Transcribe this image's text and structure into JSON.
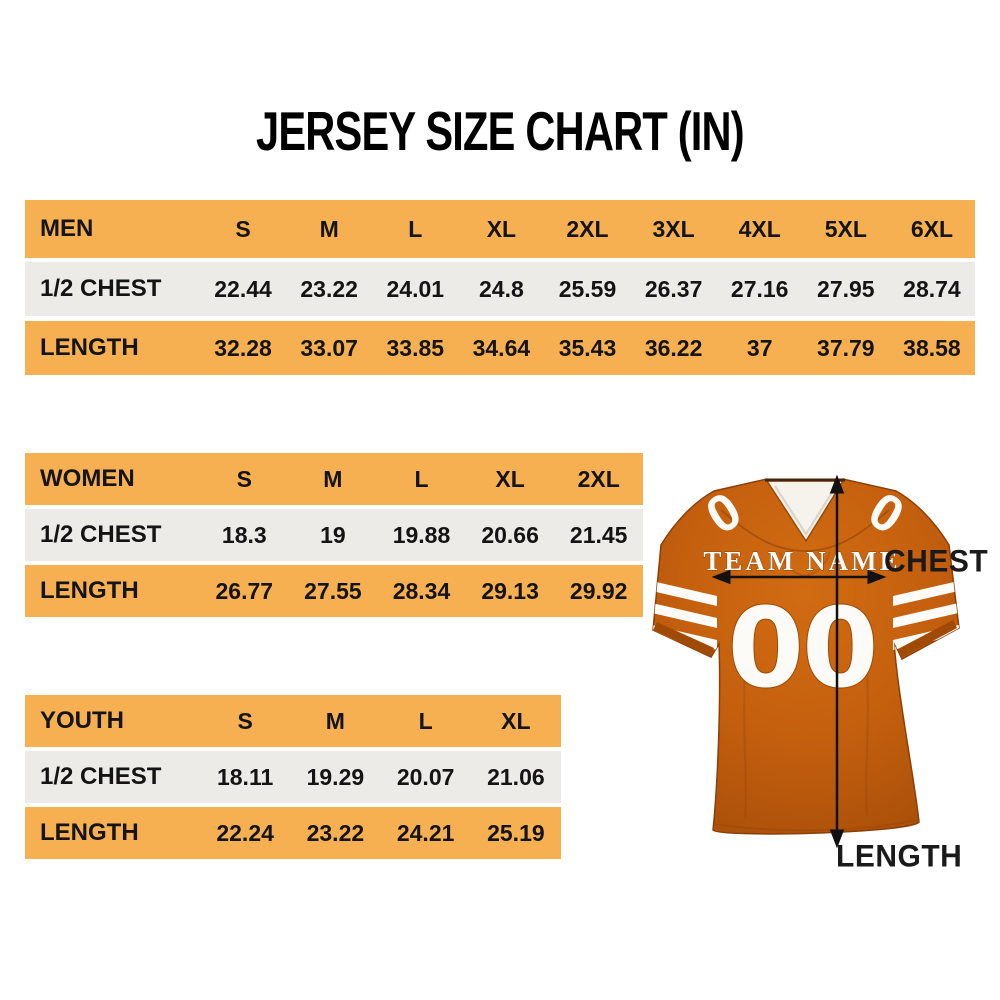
{
  "title": "JERSEY SIZE CHART (IN)",
  "tables": [
    {
      "name": "MEN",
      "sizes": [
        "S",
        "M",
        "L",
        "XL",
        "2XL",
        "3XL",
        "4XL",
        "5XL",
        "6XL"
      ],
      "rows": [
        {
          "label": "1/2 CHEST",
          "values": [
            "22.44",
            "23.22",
            "24.01",
            "24.8",
            "25.59",
            "26.37",
            "27.16",
            "27.95",
            "28.74"
          ]
        },
        {
          "label": "LENGTH",
          "values": [
            "32.28",
            "33.07",
            "33.85",
            "34.64",
            "35.43",
            "36.22",
            "37",
            "37.79",
            "38.58"
          ]
        }
      ]
    },
    {
      "name": "WOMEN",
      "sizes": [
        "S",
        "M",
        "L",
        "XL",
        "2XL"
      ],
      "rows": [
        {
          "label": "1/2 CHEST",
          "values": [
            "18.3",
            "19",
            "19.88",
            "20.66",
            "21.45"
          ]
        },
        {
          "label": "LENGTH",
          "values": [
            "26.77",
            "27.55",
            "28.34",
            "29.13",
            "29.92"
          ]
        }
      ]
    },
    {
      "name": "YOUTH",
      "sizes": [
        "S",
        "M",
        "L",
        "XL"
      ],
      "rows": [
        {
          "label": "1/2 CHEST",
          "values": [
            "18.11",
            "19.29",
            "20.07",
            "21.06"
          ]
        },
        {
          "label": "LENGTH",
          "values": [
            "22.24",
            "23.22",
            "24.21",
            "25.19"
          ]
        }
      ]
    }
  ],
  "jersey": {
    "team_name": "TEAM NAME",
    "number": "00",
    "shoulder_number": "0",
    "chest_label": "CHEST",
    "length_label": "LENGTH"
  },
  "colors": {
    "table_header_orange": "#F6B052",
    "table_row_gray": "#ECEBE8",
    "jersey_orange": "#C6600F",
    "jersey_dark_orange": "#A84E07",
    "text_black": "#141414",
    "white": "#FFFFFF"
  },
  "chart_data": [
    {
      "type": "table",
      "title": "MEN",
      "columns": [
        "",
        "S",
        "M",
        "L",
        "XL",
        "2XL",
        "3XL",
        "4XL",
        "5XL",
        "6XL"
      ],
      "rows": [
        [
          "1/2 CHEST",
          22.44,
          23.22,
          24.01,
          24.8,
          25.59,
          26.37,
          27.16,
          27.95,
          28.74
        ],
        [
          "LENGTH",
          32.28,
          33.07,
          33.85,
          34.64,
          35.43,
          36.22,
          37,
          37.79,
          38.58
        ]
      ],
      "units": "inches"
    },
    {
      "type": "table",
      "title": "WOMEN",
      "columns": [
        "",
        "S",
        "M",
        "L",
        "XL",
        "2XL"
      ],
      "rows": [
        [
          "1/2 CHEST",
          18.3,
          19,
          19.88,
          20.66,
          21.45
        ],
        [
          "LENGTH",
          26.77,
          27.55,
          28.34,
          29.13,
          29.92
        ]
      ],
      "units": "inches"
    },
    {
      "type": "table",
      "title": "YOUTH",
      "columns": [
        "",
        "S",
        "M",
        "L",
        "XL"
      ],
      "rows": [
        [
          "1/2 CHEST",
          18.11,
          19.29,
          20.07,
          21.06
        ],
        [
          "LENGTH",
          22.24,
          23.22,
          24.21,
          25.19
        ]
      ],
      "units": "inches"
    }
  ]
}
